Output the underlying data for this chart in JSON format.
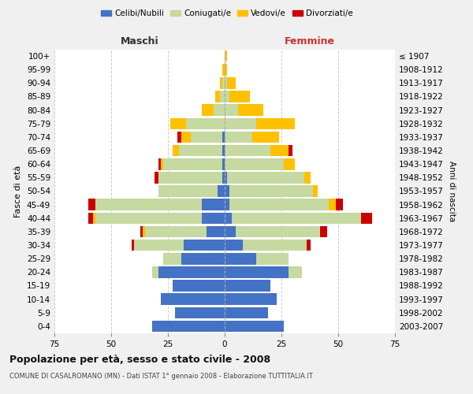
{
  "age_groups": [
    "0-4",
    "5-9",
    "10-14",
    "15-19",
    "20-24",
    "25-29",
    "30-34",
    "35-39",
    "40-44",
    "45-49",
    "50-54",
    "55-59",
    "60-64",
    "65-69",
    "70-74",
    "75-79",
    "80-84",
    "85-89",
    "90-94",
    "95-99",
    "100+"
  ],
  "birth_years": [
    "2003-2007",
    "1998-2002",
    "1993-1997",
    "1988-1992",
    "1983-1987",
    "1978-1982",
    "1973-1977",
    "1968-1972",
    "1963-1967",
    "1958-1962",
    "1953-1957",
    "1948-1952",
    "1943-1947",
    "1938-1942",
    "1933-1937",
    "1928-1932",
    "1923-1927",
    "1918-1922",
    "1913-1917",
    "1908-1912",
    "≤ 1907"
  ],
  "males": {
    "celibi": [
      32,
      22,
      28,
      23,
      29,
      19,
      18,
      8,
      10,
      10,
      3,
      1,
      1,
      1,
      1,
      0,
      0,
      0,
      0,
      0,
      0
    ],
    "coniugati": [
      0,
      0,
      0,
      0,
      3,
      8,
      22,
      27,
      47,
      47,
      26,
      28,
      26,
      19,
      14,
      17,
      5,
      2,
      1,
      0,
      0
    ],
    "vedovi": [
      0,
      0,
      0,
      0,
      0,
      0,
      0,
      1,
      1,
      0,
      0,
      0,
      1,
      3,
      4,
      7,
      5,
      2,
      1,
      1,
      0
    ],
    "divorziati": [
      0,
      0,
      0,
      0,
      0,
      0,
      1,
      1,
      2,
      3,
      0,
      2,
      1,
      0,
      2,
      0,
      0,
      0,
      0,
      0,
      0
    ]
  },
  "females": {
    "nubili": [
      26,
      19,
      23,
      20,
      28,
      14,
      8,
      5,
      3,
      2,
      2,
      1,
      0,
      0,
      0,
      0,
      0,
      0,
      0,
      0,
      0
    ],
    "coniugate": [
      0,
      0,
      0,
      0,
      6,
      14,
      28,
      37,
      57,
      44,
      37,
      34,
      26,
      20,
      12,
      14,
      6,
      2,
      1,
      0,
      0
    ],
    "vedove": [
      0,
      0,
      0,
      0,
      0,
      0,
      0,
      0,
      0,
      3,
      2,
      3,
      5,
      8,
      12,
      17,
      11,
      9,
      4,
      1,
      1
    ],
    "divorziate": [
      0,
      0,
      0,
      0,
      0,
      0,
      2,
      3,
      5,
      3,
      0,
      0,
      0,
      2,
      0,
      0,
      0,
      0,
      0,
      0,
      0
    ]
  },
  "colors": {
    "celibi": "#4472c4",
    "coniugati": "#c5d9a0",
    "vedovi": "#ffc000",
    "divorziati": "#cc0000"
  },
  "xlim": 75,
  "title": "Popolazione per età, sesso e stato civile - 2008",
  "subtitle": "COMUNE DI CASALROMANO (MN) - Dati ISTAT 1° gennaio 2008 - Elaborazione TUTTITALIA.IT",
  "ylabel_left": "Fasce di età",
  "ylabel_right": "Anni di nascita",
  "xlabel_maschi": "Maschi",
  "xlabel_femmine": "Femmine",
  "legend_labels": [
    "Celibi/Nubili",
    "Coniugati/e",
    "Vedovi/e",
    "Divorziati/e"
  ],
  "bg_color": "#f0f0f0",
  "plot_bg": "#ffffff",
  "grid_color": "#cccccc"
}
